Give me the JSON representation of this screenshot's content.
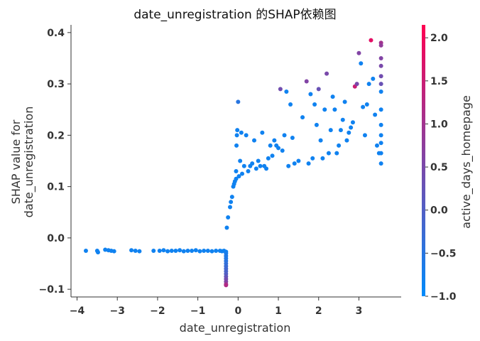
{
  "chart_data": {
    "type": "scatter",
    "title": "date_unregistration 的SHAP依赖图",
    "xlabel": "date_unregistration",
    "ylabel_lines": [
      "SHAP value for",
      "date_unregistration"
    ],
    "xlim": [
      -4.15,
      4.05
    ],
    "ylim": [
      -0.115,
      0.415
    ],
    "x_ticks": [
      -4,
      -3,
      -2,
      -1,
      0,
      1,
      2,
      3
    ],
    "x_tick_labels": [
      "−4",
      "−3",
      "−2",
      "−1",
      "0",
      "1",
      "2",
      "3"
    ],
    "y_ticks": [
      -0.1,
      0.0,
      0.1,
      0.2,
      0.3,
      0.4
    ],
    "y_tick_labels": [
      "−0.1",
      "0.0",
      "0.1",
      "0.2",
      "0.3",
      "0.4"
    ],
    "colorbar": {
      "label": "active_days_homepage",
      "range": [
        -1.0,
        2.15
      ],
      "ticks": [
        -1.0,
        -0.5,
        0.0,
        0.5,
        1.0,
        1.5,
        2.0
      ],
      "tick_labels": [
        "−1.0",
        "−0.5",
        "0.0",
        "0.5",
        "1.0",
        "1.5",
        "2.0"
      ],
      "colormap": [
        "#008bfb",
        "#ff0051"
      ]
    },
    "grid": false,
    "legend": "colorbar-right",
    "points": [
      [
        -3.78,
        -0.025,
        -0.8
      ],
      [
        -3.5,
        -0.025,
        -0.8
      ],
      [
        -3.48,
        -0.028,
        -0.8
      ],
      [
        -3.3,
        -0.023,
        -0.8
      ],
      [
        -3.22,
        -0.024,
        -0.8
      ],
      [
        -3.15,
        -0.025,
        -0.8
      ],
      [
        -3.08,
        -0.026,
        -0.8
      ],
      [
        -2.65,
        -0.024,
        -0.8
      ],
      [
        -2.55,
        -0.025,
        -0.8
      ],
      [
        -2.45,
        -0.026,
        -0.8
      ],
      [
        -2.1,
        -0.025,
        -0.8
      ],
      [
        -1.95,
        -0.025,
        -0.8
      ],
      [
        -1.85,
        -0.024,
        -0.8
      ],
      [
        -1.75,
        -0.026,
        -0.8
      ],
      [
        -1.65,
        -0.025,
        -0.8
      ],
      [
        -1.55,
        -0.025,
        -0.8
      ],
      [
        -1.45,
        -0.024,
        -0.8
      ],
      [
        -1.35,
        -0.026,
        -0.8
      ],
      [
        -1.25,
        -0.025,
        -0.8
      ],
      [
        -1.15,
        -0.025,
        -0.8
      ],
      [
        -1.05,
        -0.024,
        -0.8
      ],
      [
        -0.95,
        -0.026,
        -0.8
      ],
      [
        -0.85,
        -0.025,
        -0.8
      ],
      [
        -0.75,
        -0.025,
        -0.8
      ],
      [
        -0.65,
        -0.026,
        -0.8
      ],
      [
        -0.55,
        -0.025,
        -0.8
      ],
      [
        -0.45,
        -0.025,
        -0.8
      ],
      [
        -0.4,
        -0.026,
        -0.8
      ],
      [
        -0.35,
        -0.025,
        -0.8
      ],
      [
        -0.3,
        -0.027,
        -0.8
      ],
      [
        -0.3,
        -0.03,
        -0.7
      ],
      [
        -0.3,
        -0.035,
        -0.6
      ],
      [
        -0.3,
        -0.04,
        -0.6
      ],
      [
        -0.3,
        -0.045,
        -0.5
      ],
      [
        -0.3,
        -0.05,
        -0.4
      ],
      [
        -0.3,
        -0.055,
        -0.3
      ],
      [
        -0.3,
        -0.06,
        -0.2
      ],
      [
        -0.3,
        -0.065,
        -0.1
      ],
      [
        -0.3,
        -0.07,
        0.0
      ],
      [
        -0.3,
        -0.075,
        0.2
      ],
      [
        -0.3,
        -0.08,
        0.4
      ],
      [
        -0.3,
        -0.085,
        0.6
      ],
      [
        -0.3,
        -0.09,
        0.9
      ],
      [
        -0.3,
        -0.092,
        1.2
      ],
      [
        -0.28,
        0.02,
        -0.8
      ],
      [
        -0.25,
        0.04,
        -0.8
      ],
      [
        -0.2,
        0.06,
        -0.8
      ],
      [
        -0.18,
        0.07,
        -0.8
      ],
      [
        -0.15,
        0.08,
        -0.8
      ],
      [
        -0.12,
        0.1,
        -0.8
      ],
      [
        -0.1,
        0.105,
        -0.8
      ],
      [
        -0.08,
        0.11,
        -0.8
      ],
      [
        -0.05,
        0.115,
        -0.8
      ],
      [
        -0.05,
        0.13,
        -0.8
      ],
      [
        -0.04,
        0.18,
        -0.8
      ],
      [
        -0.03,
        0.2,
        -0.8
      ],
      [
        -0.02,
        0.21,
        -0.8
      ],
      [
        0.0,
        0.265,
        -0.5
      ],
      [
        0.02,
        0.12,
        -0.8
      ],
      [
        0.05,
        0.15,
        -0.8
      ],
      [
        0.08,
        0.205,
        -0.8
      ],
      [
        0.1,
        0.125,
        -0.8
      ],
      [
        0.15,
        0.14,
        -0.8
      ],
      [
        0.2,
        0.2,
        -0.8
      ],
      [
        0.25,
        0.13,
        -0.8
      ],
      [
        0.3,
        0.14,
        -0.8
      ],
      [
        0.35,
        0.145,
        -0.8
      ],
      [
        0.4,
        0.19,
        -0.8
      ],
      [
        0.45,
        0.135,
        -0.8
      ],
      [
        0.5,
        0.15,
        -0.8
      ],
      [
        0.55,
        0.14,
        -0.8
      ],
      [
        0.6,
        0.205,
        -0.8
      ],
      [
        0.65,
        0.14,
        -0.8
      ],
      [
        0.7,
        0.135,
        -0.8
      ],
      [
        0.75,
        0.155,
        -0.8
      ],
      [
        0.8,
        0.18,
        -0.8
      ],
      [
        0.85,
        0.16,
        -0.8
      ],
      [
        0.9,
        0.19,
        -0.8
      ],
      [
        0.95,
        0.18,
        -0.8
      ],
      [
        1.0,
        0.175,
        -0.8
      ],
      [
        1.05,
        0.29,
        0.4
      ],
      [
        1.1,
        0.17,
        -0.8
      ],
      [
        1.15,
        0.2,
        -0.8
      ],
      [
        1.2,
        0.285,
        -0.8
      ],
      [
        1.25,
        0.14,
        -0.8
      ],
      [
        1.3,
        0.26,
        -0.8
      ],
      [
        1.35,
        0.195,
        -0.8
      ],
      [
        1.4,
        0.145,
        -0.8
      ],
      [
        1.5,
        0.15,
        -0.8
      ],
      [
        1.6,
        0.235,
        -0.8
      ],
      [
        1.7,
        0.305,
        0.6
      ],
      [
        1.75,
        0.145,
        -0.8
      ],
      [
        1.8,
        0.28,
        -0.8
      ],
      [
        1.85,
        0.155,
        -0.8
      ],
      [
        1.9,
        0.26,
        -0.8
      ],
      [
        1.95,
        0.22,
        -0.8
      ],
      [
        2.0,
        0.29,
        0.3
      ],
      [
        2.05,
        0.19,
        -0.8
      ],
      [
        2.1,
        0.155,
        -0.8
      ],
      [
        2.15,
        0.25,
        -0.8
      ],
      [
        2.2,
        0.32,
        0.5
      ],
      [
        2.25,
        0.165,
        -0.8
      ],
      [
        2.3,
        0.21,
        -0.8
      ],
      [
        2.35,
        0.275,
        -0.8
      ],
      [
        2.4,
        0.25,
        -0.8
      ],
      [
        2.45,
        0.165,
        -0.8
      ],
      [
        2.5,
        0.18,
        -0.8
      ],
      [
        2.55,
        0.21,
        -0.8
      ],
      [
        2.6,
        0.23,
        -0.8
      ],
      [
        2.65,
        0.265,
        -0.8
      ],
      [
        2.7,
        0.19,
        -0.8
      ],
      [
        2.75,
        0.205,
        -0.8
      ],
      [
        2.8,
        0.215,
        -0.8
      ],
      [
        2.85,
        0.225,
        -0.8
      ],
      [
        2.9,
        0.295,
        1.5
      ],
      [
        2.95,
        0.3,
        0.5
      ],
      [
        3.0,
        0.36,
        0.6
      ],
      [
        3.05,
        0.34,
        -0.8
      ],
      [
        3.1,
        0.255,
        -0.8
      ],
      [
        3.15,
        0.2,
        -0.8
      ],
      [
        3.2,
        0.26,
        -0.8
      ],
      [
        3.25,
        0.3,
        -0.8
      ],
      [
        3.3,
        0.385,
        1.8
      ],
      [
        3.35,
        0.31,
        -0.8
      ],
      [
        3.4,
        0.24,
        -0.8
      ],
      [
        3.45,
        0.18,
        -0.8
      ],
      [
        3.5,
        0.165,
        -0.8
      ],
      [
        3.55,
        0.38,
        1.0
      ],
      [
        3.55,
        0.375,
        0.8
      ],
      [
        3.55,
        0.35,
        0.6
      ],
      [
        3.55,
        0.335,
        0.5
      ],
      [
        3.55,
        0.315,
        0.4
      ],
      [
        3.55,
        0.3,
        0.3
      ],
      [
        3.55,
        0.285,
        -0.8
      ],
      [
        3.55,
        0.25,
        -0.8
      ],
      [
        3.55,
        0.22,
        -0.8
      ],
      [
        3.55,
        0.2,
        -0.8
      ],
      [
        3.55,
        0.185,
        -0.8
      ],
      [
        3.55,
        0.165,
        -0.8
      ],
      [
        3.55,
        0.145,
        -0.8
      ]
    ]
  }
}
